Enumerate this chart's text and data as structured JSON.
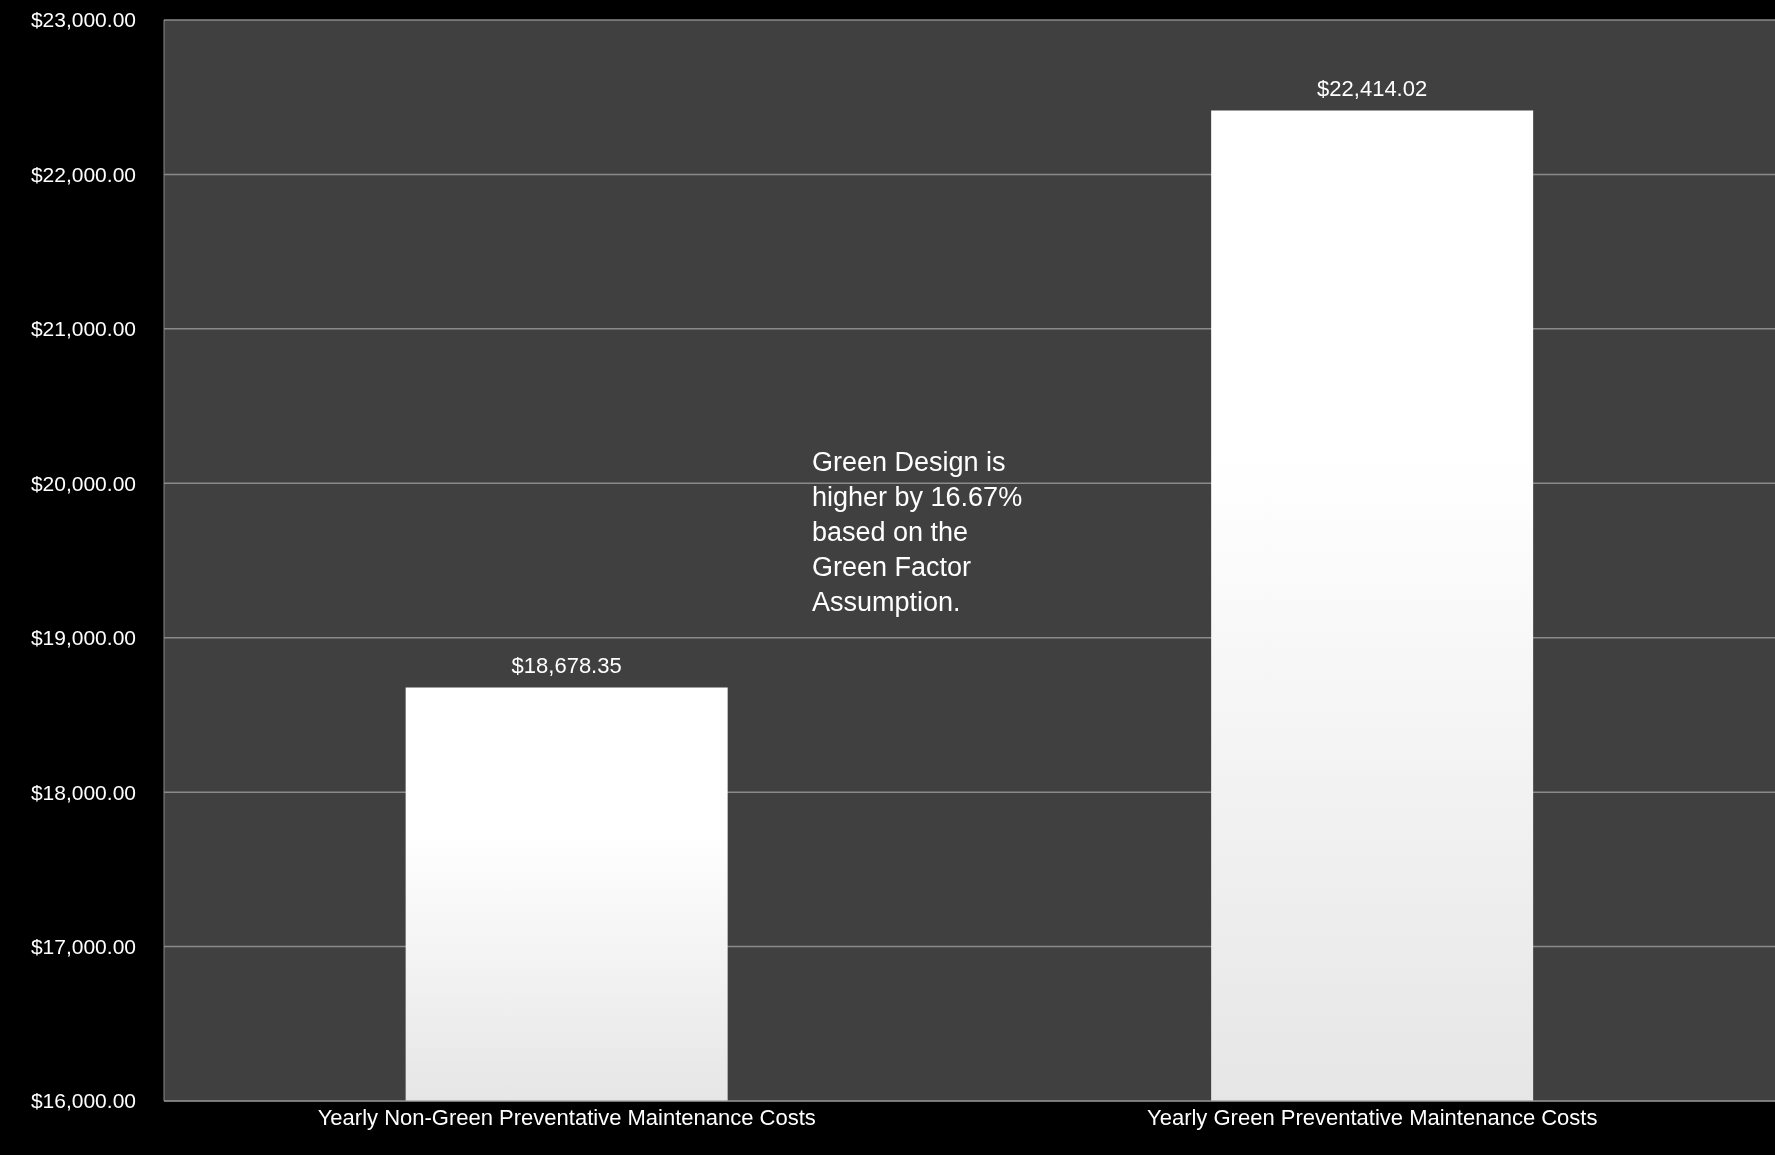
{
  "chart_data": {
    "type": "bar",
    "categories": [
      "Yearly Non-Green Preventative Maintenance Costs",
      "Yearly Green Preventative Maintenance Costs"
    ],
    "values": [
      18678.35,
      22414.02
    ],
    "value_labels": [
      "$18,678.35",
      "$22,414.02"
    ],
    "color": "#e6e6e6",
    "ylim": [
      16000,
      23000
    ],
    "yticks": [
      {
        "value": 16000,
        "label": "$16,000.00"
      },
      {
        "value": 17000,
        "label": "$17,000.00"
      },
      {
        "value": 18000,
        "label": "$18,000.00"
      },
      {
        "value": 19000,
        "label": "$19,000.00"
      },
      {
        "value": 20000,
        "label": "$20,000.00"
      },
      {
        "value": 21000,
        "label": "$21,000.00"
      },
      {
        "value": 22000,
        "label": "$22,000.00"
      },
      {
        "value": 23000,
        "label": "$23,000.00"
      }
    ],
    "grid": "y",
    "annotations": [
      "Green Design is higher by 16.67% based on the Green Factor Assumption."
    ]
  }
}
